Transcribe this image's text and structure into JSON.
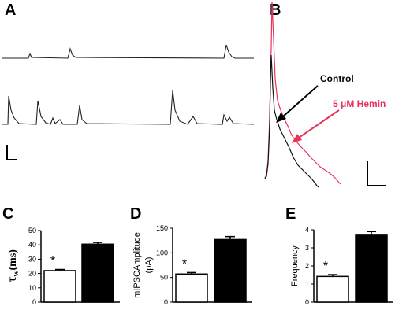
{
  "panels": {
    "A": "A",
    "B": "B",
    "C": "C",
    "D": "D",
    "E": "E"
  },
  "traceB": {
    "control_label": "Control",
    "hemin_label": "5 μM Hemin",
    "control_color": "#111111",
    "hemin_color": "#e8325a",
    "arrow_black": "#000000",
    "arrow_red": "#e8325a"
  },
  "chart_data": [
    {
      "type": "bar",
      "panel": "C",
      "categories": [
        "",
        ""
      ],
      "values": [
        22,
        40.5
      ],
      "errors": [
        0.8,
        1.2
      ],
      "bar_fills": [
        "#ffffff",
        "#000000"
      ],
      "significance": [
        "*",
        ""
      ],
      "ylabel_symbol": "τ",
      "ylabel_sub": "w",
      "ylabel_rest": "(ms)",
      "ylim": [
        0,
        50
      ],
      "yticks": [
        "0",
        "10",
        "20",
        "30",
        "40",
        "50"
      ]
    },
    {
      "type": "bar",
      "panel": "D",
      "categories": [
        "",
        ""
      ],
      "values": [
        57,
        127
      ],
      "errors": [
        3,
        6
      ],
      "bar_fills": [
        "#ffffff",
        "#000000"
      ],
      "significance": [
        "*",
        ""
      ],
      "ylabel_line1": "mIPSCAmplitude",
      "ylabel_line2": "(pA)",
      "ylim": [
        0,
        150
      ],
      "yticks": [
        "0",
        "50",
        "100",
        "150"
      ]
    },
    {
      "type": "bar",
      "panel": "E",
      "categories": [
        "",
        ""
      ],
      "values": [
        1.42,
        3.7
      ],
      "errors": [
        0.1,
        0.2
      ],
      "bar_fills": [
        "#ffffff",
        "#000000"
      ],
      "significance": [
        "*",
        ""
      ],
      "ylabel": "Frequency",
      "ylim": [
        0,
        4
      ],
      "yticks": [
        "0",
        "1",
        "2",
        "3",
        "4"
      ]
    }
  ]
}
